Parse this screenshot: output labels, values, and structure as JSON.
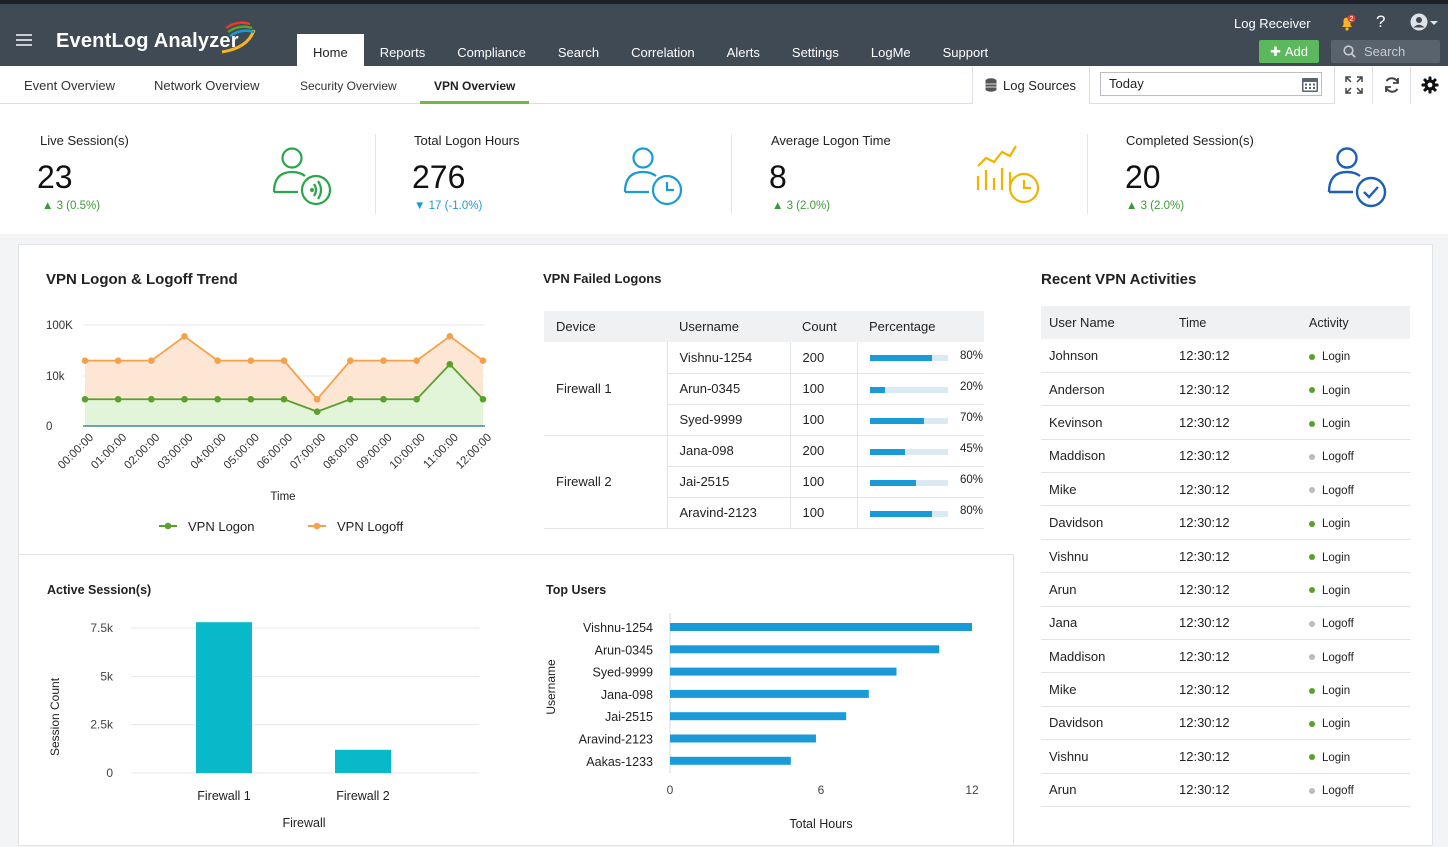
{
  "app": {
    "title": "EventLog Analyzer"
  },
  "topbar": {
    "log_receiver": "Log Receiver",
    "notif_count": "2",
    "help": "?",
    "add_label": "Add",
    "search_label": "Search"
  },
  "nav": {
    "items": [
      "Home",
      "Reports",
      "Compliance",
      "Search",
      "Correlation",
      "Alerts",
      "Settings",
      "LogMe",
      "Support"
    ],
    "active": "Home"
  },
  "subnav": {
    "tabs": [
      "Event Overview",
      "Network Overview",
      "Security Overview",
      "VPN Overview"
    ],
    "active": "VPN Overview",
    "log_sources": "Log Sources",
    "date_value": "Today"
  },
  "kpis": [
    {
      "title": "Live Session(s)",
      "value": "23",
      "change": "3 (0.5%)",
      "trend": "up"
    },
    {
      "title": "Total Logon Hours",
      "value": "276",
      "change": "17 (-1.0%)",
      "trend": "down"
    },
    {
      "title": "Average Logon Time",
      "value": "8",
      "change": "3 (2.0%)",
      "trend": "up"
    },
    {
      "title": "Completed Session(s)",
      "value": "20",
      "change": "3 (2.0%)",
      "trend": "up"
    }
  ],
  "colors": {
    "green": "#5aa02c",
    "orange": "#f5a04a",
    "blue": "#1a9bd7",
    "teal": "#0ab9c9",
    "nav_bg": "#3f4a55",
    "up": "#3a9b36",
    "down": "#1a9bd7"
  },
  "chart_data": [
    {
      "type": "area",
      "title": "VPN Logon & Logoff Trend",
      "xlabel": "Time",
      "ylabel": "",
      "yscale": "log",
      "yticks": [
        "100K",
        "10k",
        "0"
      ],
      "x": [
        "00:00:00",
        "01:00:00",
        "02:00:00",
        "03:00:00",
        "04:00:00",
        "05:00:00",
        "06:00:00",
        "07:00:00",
        "08:00:00",
        "09:00:00",
        "10:00:00",
        "11:00:00",
        "12:00:00"
      ],
      "series": [
        {
          "name": "VPN Logon",
          "values": [
            3500,
            3500,
            3500,
            3500,
            3500,
            3500,
            3500,
            2000,
            3500,
            3500,
            3500,
            17000,
            3500
          ]
        },
        {
          "name": "VPN Logoff",
          "values": [
            20000,
            20000,
            20000,
            60000,
            20000,
            20000,
            20000,
            3500,
            20000,
            20000,
            20000,
            60000,
            20000
          ]
        }
      ],
      "legend": "bottom"
    },
    {
      "type": "table",
      "title": "VPN Failed Logons",
      "columns": [
        "Device",
        "Username",
        "Count",
        "Percentage"
      ],
      "groups": [
        {
          "device": "Firewall 1",
          "rows": [
            {
              "username": "Vishnu-1254",
              "count": "200",
              "pct": 80,
              "pct_label": "80%"
            },
            {
              "username": "Arun-0345",
              "count": "100",
              "pct": 20,
              "pct_label": "20%"
            },
            {
              "username": "Syed-9999",
              "count": "100",
              "pct": 70,
              "pct_label": "70%"
            }
          ]
        },
        {
          "device": "Firewall 2",
          "rows": [
            {
              "username": "Jana-098",
              "count": "200",
              "pct": 45,
              "pct_label": "45%"
            },
            {
              "username": "Jai-2515",
              "count": "100",
              "pct": 60,
              "pct_label": "60%"
            },
            {
              "username": "Aravind-2123",
              "count": "100",
              "pct": 80,
              "pct_label": "80%"
            }
          ]
        }
      ]
    },
    {
      "type": "bar",
      "title": "Active Session(s)",
      "categories": [
        "Firewall 1",
        "Firewall 2"
      ],
      "values": [
        7800,
        1200
      ],
      "xlabel": "Firewall",
      "ylabel": "Session Count",
      "yticks": [
        "7.5k",
        "5k",
        "2.5k",
        "0"
      ],
      "ylim": [
        0,
        8500
      ]
    },
    {
      "type": "bar",
      "orientation": "horizontal",
      "title": "Top Users",
      "categories": [
        "Vishnu-1254",
        "Arun-0345",
        "Syed-9999",
        "Jana-098",
        "Jai-2515",
        "Aravind-2123",
        "Aakas-1233"
      ],
      "values": [
        12,
        10.7,
        9,
        7.9,
        7,
        5.8,
        4.8
      ],
      "xlabel": "Total Hours",
      "ylabel": "Username",
      "xticks": [
        "0",
        "6",
        "12"
      ],
      "xlim": [
        0,
        12.5
      ]
    }
  ],
  "recent": {
    "title": "Recent VPN Activities",
    "columns": [
      "User Name",
      "Time",
      "Activity"
    ],
    "rows": [
      {
        "user": "Johnson",
        "time": "12:30:12",
        "activity": "Login"
      },
      {
        "user": "Anderson",
        "time": "12:30:12",
        "activity": "Login"
      },
      {
        "user": "Kevinson",
        "time": "12:30:12",
        "activity": "Login"
      },
      {
        "user": "Maddison",
        "time": "12:30:12",
        "activity": "Logoff"
      },
      {
        "user": "Mike",
        "time": "12:30:12",
        "activity": "Logoff"
      },
      {
        "user": "Davidson",
        "time": "12:30:12",
        "activity": "Login"
      },
      {
        "user": "Vishnu",
        "time": "12:30:12",
        "activity": "Login"
      },
      {
        "user": "Arun",
        "time": "12:30:12",
        "activity": "Login"
      },
      {
        "user": "Jana",
        "time": "12:30:12",
        "activity": "Logoff"
      },
      {
        "user": "Maddison",
        "time": "12:30:12",
        "activity": "Logoff"
      },
      {
        "user": "Mike",
        "time": "12:30:12",
        "activity": "Login"
      },
      {
        "user": "Davidson",
        "time": "12:30:12",
        "activity": "Login"
      },
      {
        "user": "Vishnu",
        "time": "12:30:12",
        "activity": "Login"
      },
      {
        "user": "Arun",
        "time": "12:30:12",
        "activity": "Logoff"
      }
    ]
  }
}
